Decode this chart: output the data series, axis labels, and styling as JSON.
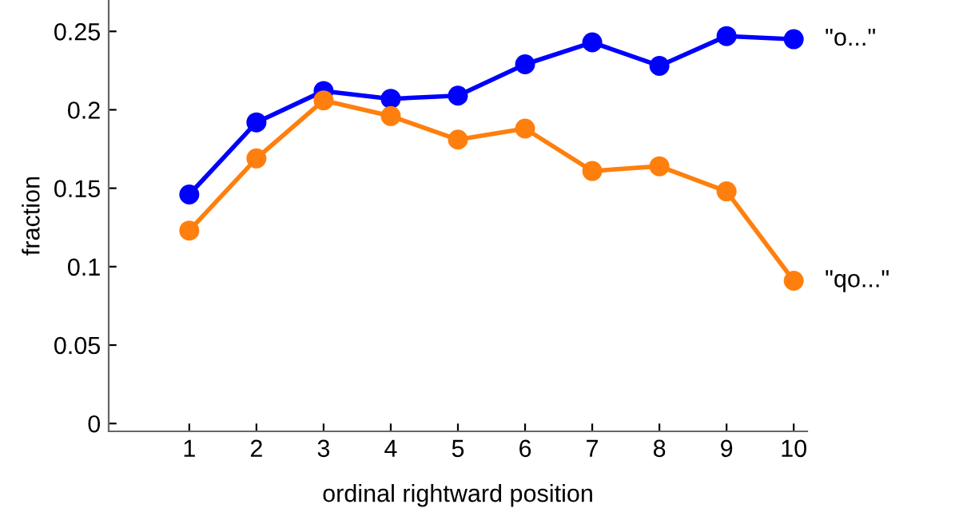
{
  "chart_data": {
    "type": "line",
    "xlabel": "ordinal rightward position",
    "ylabel": "fraction",
    "x": [
      1,
      2,
      3,
      4,
      5,
      6,
      7,
      8,
      9,
      10
    ],
    "series": [
      {
        "name": "\"o...\"",
        "color": "#0000ff",
        "values": [
          0.146,
          0.192,
          0.212,
          0.207,
          0.209,
          0.229,
          0.243,
          0.228,
          0.247,
          0.245
        ]
      },
      {
        "name": "\"qo...\"",
        "color": "#ff7f0e",
        "values": [
          0.123,
          0.169,
          0.206,
          0.196,
          0.181,
          0.188,
          0.161,
          0.164,
          0.148,
          0.091
        ]
      }
    ],
    "xlim": [
      -0.2,
      10.2
    ],
    "ylim": [
      -0.005,
      0.27
    ],
    "xticks": [
      1,
      2,
      3,
      4,
      5,
      6,
      7,
      8,
      9,
      10
    ],
    "yticks": [
      0,
      0.05,
      0.1,
      0.15,
      0.2,
      0.25
    ],
    "grid": false,
    "legend": false,
    "marker": "circle",
    "line_style": "solid"
  }
}
